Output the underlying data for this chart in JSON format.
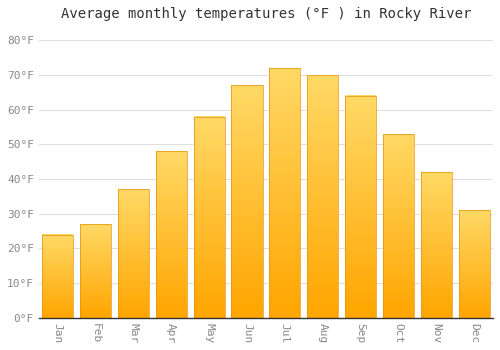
{
  "title": "Average monthly temperatures (°F ) in Rocky River",
  "months": [
    "Jan",
    "Feb",
    "Mar",
    "Apr",
    "May",
    "Jun",
    "Jul",
    "Aug",
    "Sep",
    "Oct",
    "Nov",
    "Dec"
  ],
  "values": [
    24,
    27,
    37,
    48,
    58,
    67,
    72,
    70,
    64,
    53,
    42,
    31
  ],
  "bar_color_main": "#FFAA00",
  "bar_color_light": "#FFD966",
  "background_color": "#FFFFFF",
  "plot_bg_color": "#FFFFFF",
  "grid_color": "#DDDDDD",
  "title_fontsize": 10,
  "tick_fontsize": 8,
  "ylim": [
    0,
    84
  ],
  "yticks": [
    0,
    10,
    20,
    30,
    40,
    50,
    60,
    70,
    80
  ]
}
